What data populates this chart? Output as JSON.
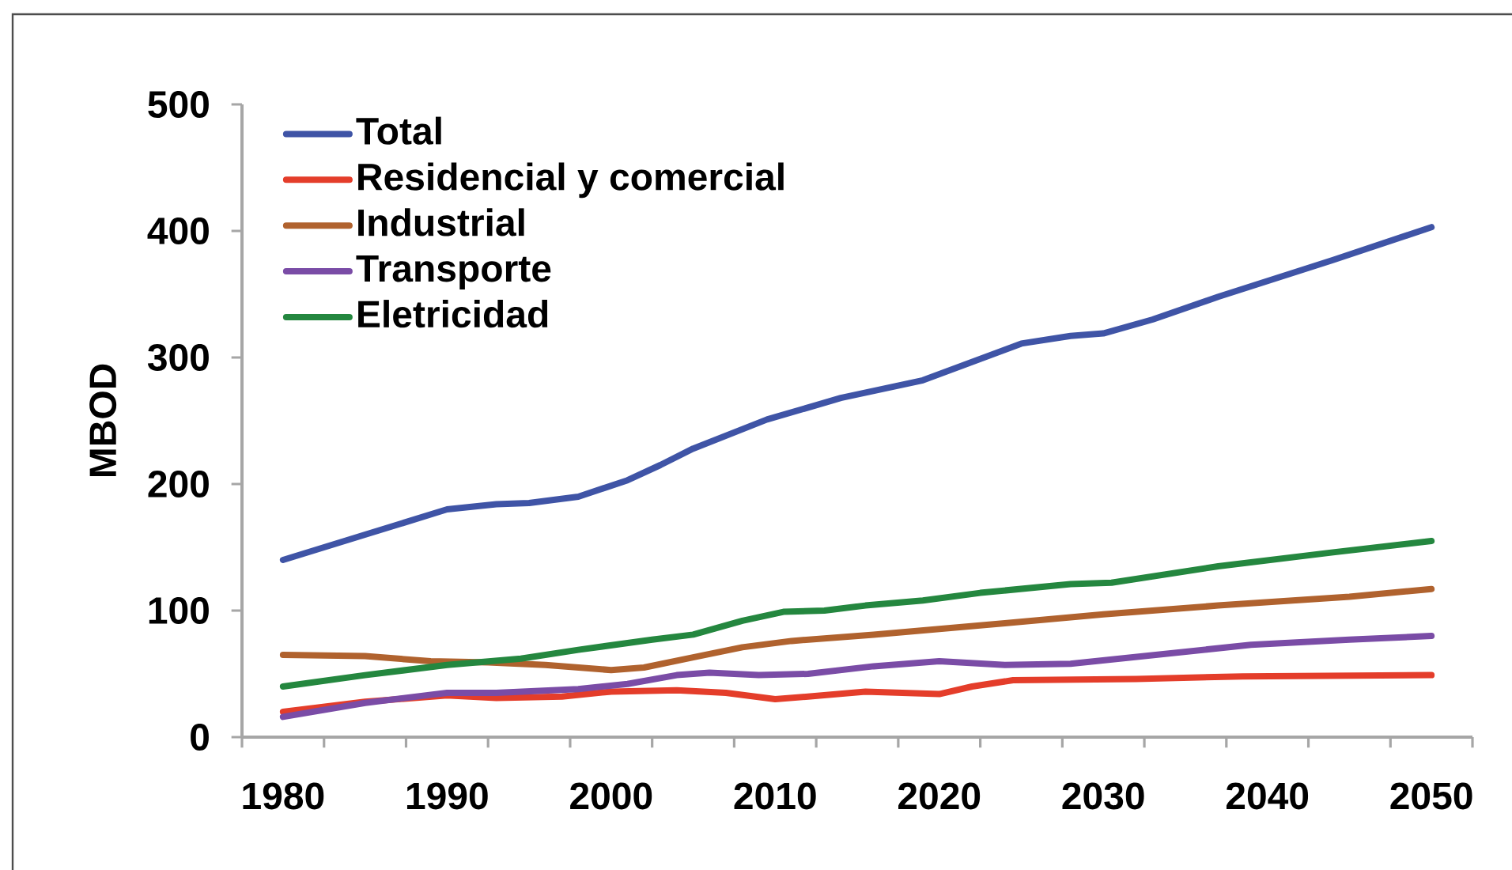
{
  "chart_data": {
    "type": "line",
    "ylabel": "MBOD",
    "xlim": [
      1977.5,
      2052.5
    ],
    "xticks": [
      1980,
      1990,
      2000,
      2010,
      2020,
      2030,
      2040,
      2050,
      {
        "value": 1977.5,
        "label": null
      },
      {
        "value": 1982.5,
        "label": null
      },
      {
        "value": 1987.5,
        "label": null
      },
      {
        "value": 1992.5,
        "label": null
      },
      {
        "value": 1997.5,
        "label": null
      },
      {
        "value": 2002.5,
        "label": null
      },
      {
        "value": 2007.5,
        "label": null
      },
      {
        "value": 2012.5,
        "label": null
      },
      {
        "value": 2017.5,
        "label": null
      },
      {
        "value": 2022.5,
        "label": null
      },
      {
        "value": 2027.5,
        "label": null
      },
      {
        "value": 2032.5,
        "label": null
      },
      {
        "value": 2037.5,
        "label": null
      },
      {
        "value": 2042.5,
        "label": null
      },
      {
        "value": 2047.5,
        "label": null
      },
      {
        "value": 2052.5,
        "label": null
      }
    ],
    "ylim": [
      0,
      500
    ],
    "yticks": [
      0,
      100,
      200,
      300,
      400,
      500
    ],
    "legend": "top left",
    "series": [
      {
        "name": "Total",
        "color": "#3f54a6",
        "x": [
          1980,
          1985,
          1990,
          1993,
          1995,
          1998,
          2001,
          2003,
          2005,
          2009.5,
          2014,
          2019,
          2021.5,
          2025,
          2028,
          2030,
          2033,
          2037,
          2044,
          2050
        ],
        "values": [
          140,
          160,
          180,
          184,
          185,
          190,
          203,
          215,
          228,
          251,
          268,
          282,
          294,
          311,
          317,
          319,
          330,
          348,
          377,
          403
        ]
      },
      {
        "name": "Residencial y comercial",
        "color": "#e43d2a",
        "x": [
          1980,
          1985,
          1990,
          1993,
          1997,
          2000,
          2004,
          2007,
          2010,
          2012,
          2015.5,
          2020,
          2022,
          2024.5,
          2032,
          2038.5,
          2050
        ],
        "values": [
          20,
          28,
          33,
          31,
          32,
          36,
          37,
          35,
          30,
          32,
          36,
          34,
          40,
          45,
          46,
          48,
          49
        ]
      },
      {
        "name": "Industrial",
        "color": "#b0622e",
        "x": [
          1980,
          1985,
          1989,
          1992.5,
          1996,
          2000,
          2002,
          2005,
          2008,
          2011,
          2016,
          2024,
          2030,
          2037,
          2045,
          2050
        ],
        "values": [
          65,
          64,
          60,
          59,
          57,
          53,
          55,
          63,
          71,
          76,
          81,
          90,
          97,
          104,
          111,
          117
        ]
      },
      {
        "name": "Transporte",
        "color": "#7a4ca6",
        "x": [
          1980,
          1985,
          1990,
          1993,
          1998,
          2001,
          2004,
          2006,
          2009,
          2012,
          2016,
          2020,
          2024,
          2028,
          2032.5,
          2039,
          2045,
          2050
        ],
        "values": [
          16,
          27,
          35,
          35,
          38,
          42,
          49,
          51,
          49,
          50,
          56,
          60,
          57,
          58,
          64,
          73,
          77,
          80
        ]
      },
      {
        "name": "Eletricidad",
        "color": "#24873f",
        "x": [
          1980,
          1985,
          1990,
          1994.5,
          1998,
          2002.5,
          2005,
          2008,
          2010.5,
          2013,
          2015.5,
          2019,
          2022.5,
          2028,
          2030.5,
          2037,
          2044,
          2050
        ],
        "values": [
          40,
          49,
          57,
          62,
          69,
          77,
          81,
          92,
          99,
          100,
          104,
          108,
          114,
          121,
          122,
          135,
          146,
          155
        ]
      }
    ]
  }
}
